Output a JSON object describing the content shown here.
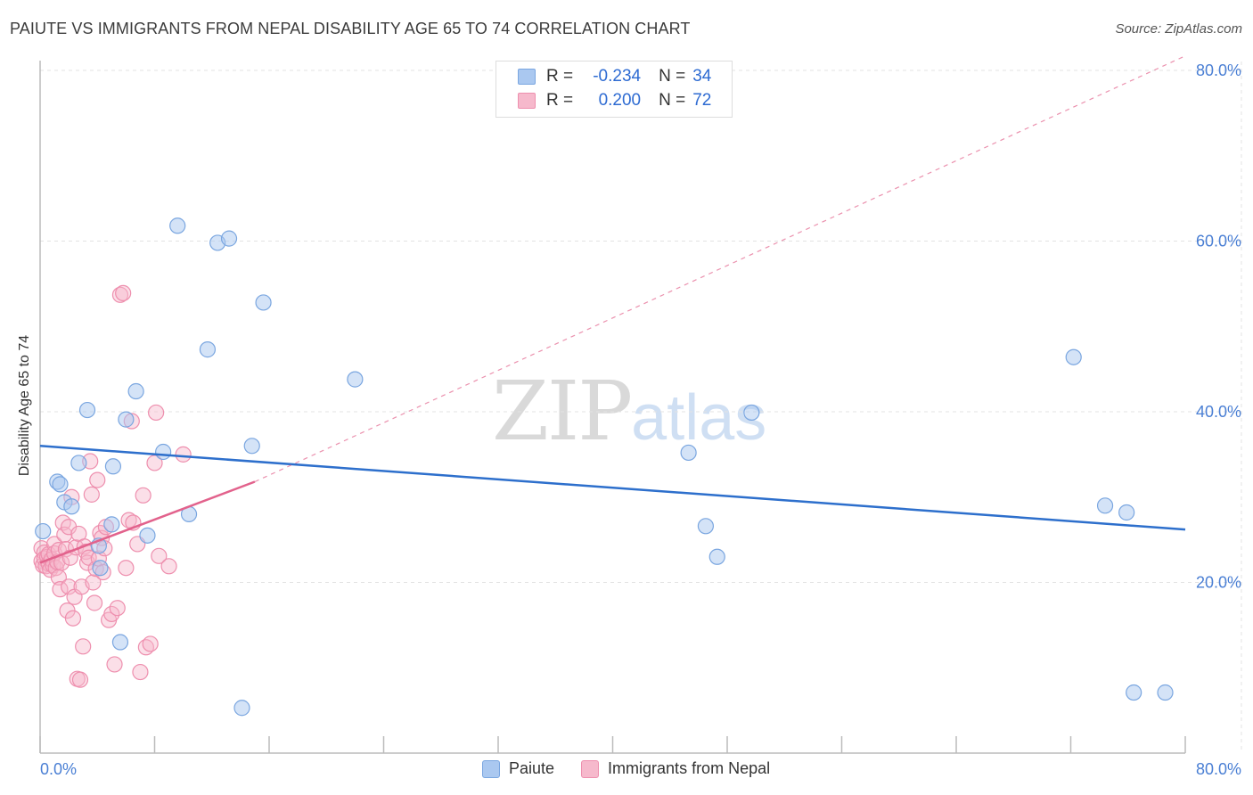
{
  "title": "PAIUTE VS IMMIGRANTS FROM NEPAL DISABILITY AGE 65 TO 74 CORRELATION CHART",
  "source": "Source: ZipAtlas.com",
  "watermark": {
    "zip": "ZIP",
    "atlas": "atlas"
  },
  "legend": {
    "series1": {
      "r_label": "R =",
      "r_value": "-0.234",
      "n_label": "N =",
      "n_value": "34"
    },
    "series2": {
      "r_label": "R =",
      "r_value": "0.200",
      "n_label": "N =",
      "n_value": "72"
    }
  },
  "colors": {
    "paiute_fill": "#aac8f0",
    "paiute_stroke": "#7aa6e0",
    "paiute_line": "#2d6fcc",
    "nepal_fill": "#f6b9cc",
    "nepal_stroke": "#ee8fae",
    "nepal_line": "#e2628c",
    "grid": "#e3e3e3",
    "tick_label": "#4a7fd4"
  },
  "chart_data": {
    "type": "scatter",
    "title": "PAIUTE VS IMMIGRANTS FROM NEPAL DISABILITY AGE 65 TO 74 CORRELATION CHART",
    "xlabel": "",
    "ylabel": "Disability Age 65 to 74",
    "xlim": [
      0,
      80
    ],
    "ylim": [
      0,
      80
    ],
    "x_tick_labels": [
      "0.0%",
      "80.0%"
    ],
    "y_tick_labels": [
      "20.0%",
      "40.0%",
      "60.0%",
      "80.0%"
    ],
    "y_ticks": [
      20,
      40,
      60,
      80
    ],
    "series": [
      {
        "name": "Paiute",
        "R": -0.234,
        "N": 34,
        "trend": {
          "x0": 0,
          "y0": 36.0,
          "x1": 80,
          "y1": 26.2
        },
        "points": [
          [
            0.2,
            26.0
          ],
          [
            1.2,
            31.8
          ],
          [
            1.4,
            31.5
          ],
          [
            1.7,
            29.4
          ],
          [
            2.2,
            28.9
          ],
          [
            2.7,
            34.0
          ],
          [
            3.3,
            40.2
          ],
          [
            4.1,
            24.3
          ],
          [
            4.2,
            21.7
          ],
          [
            5.0,
            26.8
          ],
          [
            5.1,
            33.6
          ],
          [
            5.6,
            13.0
          ],
          [
            6.0,
            39.1
          ],
          [
            6.7,
            42.4
          ],
          [
            7.5,
            25.5
          ],
          [
            8.6,
            35.3
          ],
          [
            9.6,
            61.8
          ],
          [
            10.4,
            28.0
          ],
          [
            11.7,
            47.3
          ],
          [
            12.4,
            59.8
          ],
          [
            13.2,
            60.3
          ],
          [
            14.1,
            5.3
          ],
          [
            14.8,
            36.0
          ],
          [
            15.6,
            52.8
          ],
          [
            22.0,
            43.8
          ],
          [
            45.3,
            35.2
          ],
          [
            46.5,
            26.6
          ],
          [
            47.3,
            23.0
          ],
          [
            49.7,
            39.9
          ],
          [
            72.2,
            46.4
          ],
          [
            74.4,
            29.0
          ],
          [
            75.9,
            28.2
          ],
          [
            76.4,
            7.1
          ],
          [
            78.6,
            7.1
          ]
        ]
      },
      {
        "name": "Immigrants from Nepal",
        "R": 0.2,
        "N": 72,
        "trend_solid": {
          "x0": 0,
          "y0": 22.3,
          "x1": 15,
          "y1": 31.8
        },
        "trend_dashed": {
          "x0": 15,
          "y0": 31.8,
          "x1": 80,
          "y1": 81.7
        },
        "points": [
          [
            0.1,
            22.5
          ],
          [
            0.1,
            24.0
          ],
          [
            0.2,
            22.0
          ],
          [
            0.3,
            23.5
          ],
          [
            0.3,
            22.8
          ],
          [
            0.4,
            21.9
          ],
          [
            0.5,
            23.0
          ],
          [
            0.6,
            22.2
          ],
          [
            0.6,
            23.3
          ],
          [
            0.7,
            21.5
          ],
          [
            0.8,
            22.7
          ],
          [
            0.9,
            22.0
          ],
          [
            1.0,
            24.5
          ],
          [
            1.0,
            23.4
          ],
          [
            1.1,
            21.7
          ],
          [
            1.2,
            22.4
          ],
          [
            1.3,
            23.8
          ],
          [
            1.3,
            20.6
          ],
          [
            1.4,
            19.2
          ],
          [
            1.5,
            22.3
          ],
          [
            1.6,
            27.0
          ],
          [
            1.7,
            25.6
          ],
          [
            1.8,
            23.9
          ],
          [
            1.9,
            16.7
          ],
          [
            2.0,
            26.5
          ],
          [
            2.0,
            19.5
          ],
          [
            2.1,
            22.9
          ],
          [
            2.2,
            30.0
          ],
          [
            2.3,
            15.8
          ],
          [
            2.4,
            18.3
          ],
          [
            2.5,
            24.1
          ],
          [
            2.6,
            8.7
          ],
          [
            2.7,
            25.7
          ],
          [
            2.8,
            8.6
          ],
          [
            2.9,
            19.5
          ],
          [
            3.0,
            12.5
          ],
          [
            3.1,
            24.2
          ],
          [
            3.2,
            23.6
          ],
          [
            3.3,
            22.3
          ],
          [
            3.4,
            22.9
          ],
          [
            3.5,
            34.2
          ],
          [
            3.6,
            30.3
          ],
          [
            3.7,
            20.0
          ],
          [
            3.8,
            17.6
          ],
          [
            3.9,
            21.6
          ],
          [
            4.0,
            32.0
          ],
          [
            4.1,
            22.8
          ],
          [
            4.2,
            25.8
          ],
          [
            4.3,
            25.2
          ],
          [
            4.4,
            21.2
          ],
          [
            4.5,
            24.0
          ],
          [
            4.6,
            26.5
          ],
          [
            4.8,
            15.6
          ],
          [
            5.0,
            16.3
          ],
          [
            5.2,
            10.4
          ],
          [
            5.4,
            17.0
          ],
          [
            5.6,
            53.7
          ],
          [
            5.8,
            53.9
          ],
          [
            6.0,
            21.7
          ],
          [
            6.2,
            27.3
          ],
          [
            6.4,
            38.9
          ],
          [
            6.5,
            27.0
          ],
          [
            6.8,
            24.5
          ],
          [
            7.0,
            9.5
          ],
          [
            7.2,
            30.2
          ],
          [
            7.4,
            12.4
          ],
          [
            7.7,
            12.8
          ],
          [
            8.0,
            34.0
          ],
          [
            8.1,
            39.9
          ],
          [
            8.3,
            23.1
          ],
          [
            9.0,
            21.9
          ],
          [
            10.0,
            35.0
          ]
        ]
      }
    ]
  },
  "bottom_legend": {
    "item1": "Paiute",
    "item2": "Immigrants from Nepal"
  }
}
